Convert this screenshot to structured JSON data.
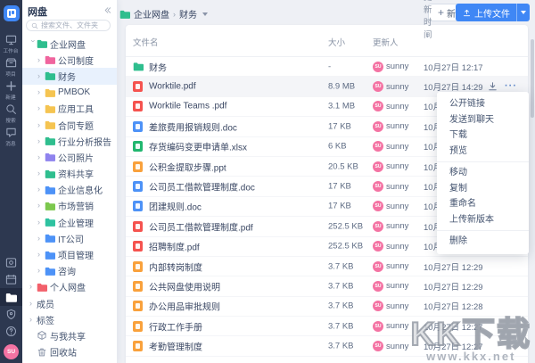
{
  "rail": {
    "items": [
      {
        "id": "workbench",
        "icon": "workbench",
        "label": "工作台"
      },
      {
        "id": "project",
        "icon": "project",
        "label": "项目"
      },
      {
        "id": "create",
        "icon": "plus",
        "label": "新建"
      },
      {
        "id": "search",
        "icon": "search",
        "label": "搜索"
      },
      {
        "id": "message",
        "icon": "message",
        "label": "消息"
      }
    ],
    "tools": [
      {
        "id": "board",
        "icon": "board",
        "active": false
      },
      {
        "id": "calendar",
        "icon": "calendar",
        "active": false
      },
      {
        "id": "drive",
        "icon": "drive",
        "active": true
      },
      {
        "id": "shield",
        "icon": "shield",
        "active": false
      },
      {
        "id": "help",
        "icon": "help",
        "active": false
      }
    ],
    "avatar_initials": "SU"
  },
  "panel": {
    "title": "网盘",
    "search_placeholder": "搜索文件、文件夹",
    "tree": [
      {
        "label": "企业网盘",
        "indent": 0,
        "chevron": "expanded",
        "icon": "folder",
        "color": "#2FBE8E",
        "selected": false
      },
      {
        "label": "公司制度",
        "indent": 1,
        "chevron": "collapsed",
        "icon": "folder",
        "color": "#F0659E",
        "selected": false
      },
      {
        "label": "财务",
        "indent": 1,
        "chevron": "collapsed",
        "icon": "folder",
        "color": "#2FBE8E",
        "selected": true
      },
      {
        "label": "PMBOK",
        "indent": 1,
        "chevron": "collapsed",
        "icon": "folder",
        "color": "#F5C451",
        "selected": false
      },
      {
        "label": "应用工具",
        "indent": 1,
        "chevron": "collapsed",
        "icon": "folder",
        "color": "#F5C451",
        "selected": false
      },
      {
        "label": "合同专题",
        "indent": 1,
        "chevron": "collapsed",
        "icon": "folder",
        "color": "#F5C451",
        "selected": false
      },
      {
        "label": "行业分析报告",
        "indent": 1,
        "chevron": "collapsed",
        "icon": "folder",
        "color": "#2FBE8E",
        "selected": false
      },
      {
        "label": "公司照片",
        "indent": 1,
        "chevron": "collapsed",
        "icon": "folder",
        "color": "#8F83EE",
        "selected": false
      },
      {
        "label": "资料共享",
        "indent": 1,
        "chevron": "collapsed",
        "icon": "folder",
        "color": "#2FBE8E",
        "selected": false
      },
      {
        "label": "企业信息化",
        "indent": 1,
        "chevron": "collapsed",
        "icon": "folder",
        "color": "#4D92F7",
        "selected": false
      },
      {
        "label": "市场营销",
        "indent": 1,
        "chevron": "collapsed",
        "icon": "folder",
        "color": "#7CC84E",
        "selected": false
      },
      {
        "label": "企业管理",
        "indent": 1,
        "chevron": "collapsed",
        "icon": "folder",
        "color": "#2EC2A0",
        "selected": false
      },
      {
        "label": "IT公司",
        "indent": 1,
        "chevron": "collapsed",
        "icon": "folder",
        "color": "#4D92F7",
        "selected": false
      },
      {
        "label": "项目管理",
        "indent": 1,
        "chevron": "collapsed",
        "icon": "folder",
        "color": "#4D92F7",
        "selected": false
      },
      {
        "label": "咨询",
        "indent": 1,
        "chevron": "collapsed",
        "icon": "folder",
        "color": "#4D92F7",
        "selected": false
      },
      {
        "label": "个人网盘",
        "indent": 0,
        "chevron": "collapsed",
        "icon": "folder",
        "color": "#F2606B",
        "selected": false
      },
      {
        "label": "成员",
        "indent": 0,
        "chevron": "collapsed",
        "icon": "none",
        "color": "",
        "selected": false
      },
      {
        "label": "标签",
        "indent": 0,
        "chevron": "collapsed",
        "icon": "none",
        "color": "",
        "selected": false
      },
      {
        "label": "与我共享",
        "indent": 0,
        "chevron": "none",
        "icon": "share",
        "color": "",
        "selected": false
      },
      {
        "label": "回收站",
        "indent": 0,
        "chevron": "none",
        "icon": "trash",
        "color": "",
        "selected": false
      }
    ]
  },
  "topbar": {
    "breadcrumb": [
      "企业网盘",
      "财务"
    ],
    "breadcrumb_separator": "›",
    "new_label": "新建",
    "upload_label": "上传文件"
  },
  "table": {
    "columns": [
      "文件名",
      "大小",
      "更新人",
      "更新时间"
    ],
    "sort_indicator": "↓",
    "updater_initials": "SU",
    "rows": [
      {
        "type": "folder",
        "name": "财务",
        "size": "-",
        "updater": "sunny",
        "time": "10月27日 12:17",
        "highlighted": false
      },
      {
        "type": "pdf",
        "name": "Worktile.pdf",
        "size": "8.9 MB",
        "updater": "sunny",
        "time": "10月27日 14:29",
        "highlighted": true
      },
      {
        "type": "pdf",
        "name": "Worktile Teams .pdf",
        "size": "3.1 MB",
        "updater": "sunny",
        "time": "10月27日",
        "highlighted": false
      },
      {
        "type": "doc",
        "name": "差旅费用报销规则.doc",
        "size": "17 KB",
        "updater": "sunny",
        "time": "10月27日",
        "highlighted": false
      },
      {
        "type": "xlsx",
        "name": "存货编码变更申请单.xlsx",
        "size": "6 KB",
        "updater": "sunny",
        "time": "10月27日",
        "highlighted": false
      },
      {
        "type": "ppt",
        "name": "公积金提取步骤.ppt",
        "size": "20.5 KB",
        "updater": "sunny",
        "time": "10月27日",
        "highlighted": false
      },
      {
        "type": "doc",
        "name": "公司员工借款管理制度.doc",
        "size": "17 KB",
        "updater": "sunny",
        "time": "10月27日",
        "highlighted": false
      },
      {
        "type": "doc",
        "name": "团建规则.doc",
        "size": "17 KB",
        "updater": "sunny",
        "time": "10月27日",
        "highlighted": false
      },
      {
        "type": "pdf",
        "name": "公司员工借款管理制度.pdf",
        "size": "252.5 KB",
        "updater": "sunny",
        "time": "10月27日",
        "highlighted": false
      },
      {
        "type": "pdf",
        "name": "招聘制度.pdf",
        "size": "252.5 KB",
        "updater": "sunny",
        "time": "10月27日",
        "highlighted": false
      },
      {
        "type": "file",
        "name": "内部转岗制度",
        "size": "3.7 KB",
        "updater": "sunny",
        "time": "10月27日 12:29",
        "highlighted": false
      },
      {
        "type": "file",
        "name": "公共网盘使用说明",
        "size": "3.7 KB",
        "updater": "sunny",
        "time": "10月27日 12:29",
        "highlighted": false
      },
      {
        "type": "file",
        "name": "办公用品审批规则",
        "size": "3.7 KB",
        "updater": "sunny",
        "time": "10月27日 12:28",
        "highlighted": false
      },
      {
        "type": "file",
        "name": "行政工作手册",
        "size": "3.7 KB",
        "updater": "sunny",
        "time": "10月27日 12:27",
        "highlighted": false
      },
      {
        "type": "file",
        "name": "考勤管理制度",
        "size": "3.7 KB",
        "updater": "sunny",
        "time": "10月27日 12:27",
        "highlighted": false
      }
    ]
  },
  "context_menu": {
    "groups": [
      [
        "公开链接",
        "发送到聊天",
        "下载",
        "预览"
      ],
      [
        "移动",
        "复制",
        "重命名",
        "上传新版本"
      ],
      [
        "删除"
      ]
    ]
  },
  "watermark": {
    "title": "KK下载",
    "url": "www.kkx.net"
  },
  "theme": {
    "accent": "#3F87F5",
    "avatar": "#F473A3",
    "type_colors": {
      "pdf": "#F5534F",
      "doc": "#4D92F7",
      "xlsx": "#21B76F",
      "ppt": "#F9A13C",
      "file": "#F9A13C",
      "folder": "#2FBE8E"
    }
  }
}
